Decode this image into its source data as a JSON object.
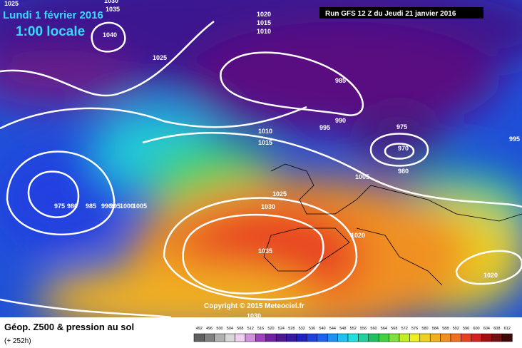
{
  "header": {
    "date": "Lundi 1 février 2016",
    "time": "1:00 locale",
    "run": "Run GFS 12 Z du Jeudi 21 janvier 2016"
  },
  "copyright": "Copyright © 2015 Meteociel.fr",
  "footer": {
    "title": "Géop. Z500 & pression au sol",
    "lead": "(+ 252h)"
  },
  "isobar_labels": [
    1025,
    1030,
    1035,
    1040,
    1025,
    1020,
    1015,
    1010,
    985,
    990,
    995,
    975,
    970,
    980,
    1010,
    1015,
    1005,
    1025,
    1030,
    1020,
    1035,
    975,
    980,
    985,
    990,
    995,
    1000,
    1005,
    995,
    1020,
    1030
  ],
  "legend": {
    "values": [
      492,
      496,
      500,
      504,
      508,
      512,
      516,
      520,
      524,
      528,
      532,
      536,
      540,
      544,
      548,
      552,
      556,
      560,
      564,
      568,
      572,
      576,
      580,
      584,
      588,
      592,
      596,
      600,
      604,
      608,
      612
    ]
  }
}
